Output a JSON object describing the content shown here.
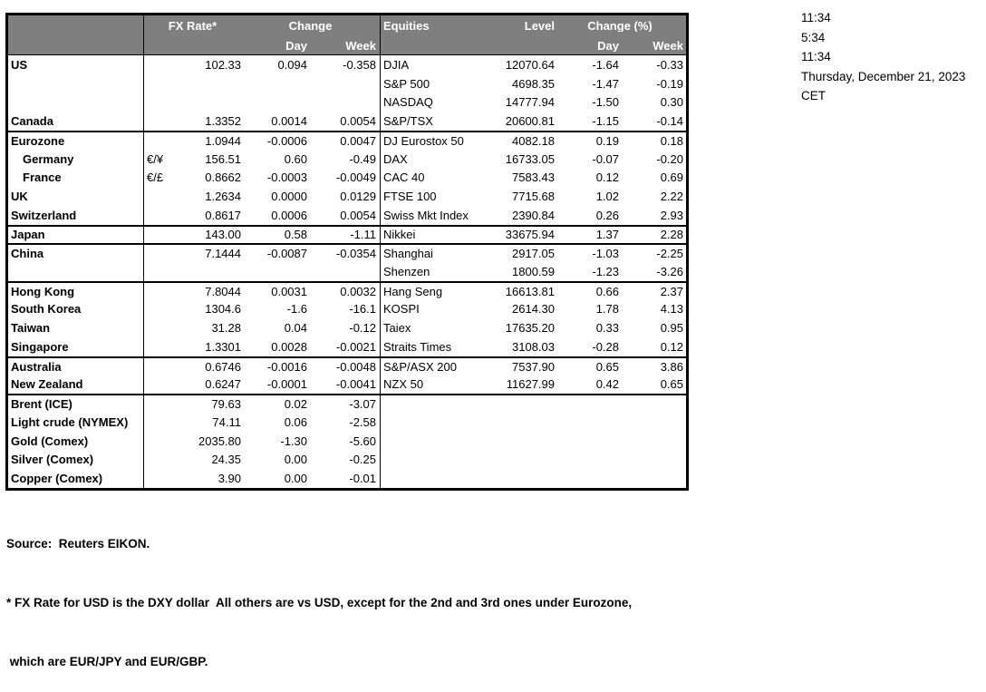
{
  "colors": {
    "header_bg": "#7f7f7f",
    "header_text": "#ffffff",
    "border": "#000000",
    "body_text": "#000000"
  },
  "header": {
    "fx": {
      "rate": "FX Rate*",
      "change": "Change",
      "day": "Day",
      "week": "Week"
    },
    "eq": {
      "title": "Equities",
      "level": "Level",
      "change": "Change (%)",
      "day": "Day",
      "week": "Week"
    }
  },
  "rows": [
    {
      "name": "US",
      "indent": false,
      "pair": "",
      "fx": "102.33",
      "fxDay": "0.094",
      "fxWeek": "-0.358",
      "eq": "DJIA",
      "level": "12070.64",
      "eqDay": "-1.64",
      "eqWeek": "-0.33",
      "section": false
    },
    {
      "name": "",
      "indent": false,
      "pair": "",
      "fx": "",
      "fxDay": "",
      "fxWeek": "",
      "eq": "S&P 500",
      "level": "4698.35",
      "eqDay": "-1.47",
      "eqWeek": "-0.19",
      "section": false
    },
    {
      "name": "",
      "indent": false,
      "pair": "",
      "fx": "",
      "fxDay": "",
      "fxWeek": "",
      "eq": "NASDAQ",
      "level": "14777.94",
      "eqDay": "-1.50",
      "eqWeek": "0.30",
      "section": false
    },
    {
      "name": "Canada",
      "indent": false,
      "pair": "",
      "fx": "1.3352",
      "fxDay": "0.0014",
      "fxWeek": "0.0054",
      "eq": "S&P/TSX",
      "level": "20600.81",
      "eqDay": "-1.15",
      "eqWeek": "-0.14",
      "section": false
    },
    {
      "name": "Eurozone",
      "indent": false,
      "pair": "",
      "fx": "1.0944",
      "fxDay": "-0.0006",
      "fxWeek": "0.0047",
      "eq": "DJ Eurostox 50",
      "level": "4082.18",
      "eqDay": "0.19",
      "eqWeek": "0.18",
      "section": true
    },
    {
      "name": "Germany",
      "indent": true,
      "pair": "€/¥",
      "fx": "156.51",
      "fxDay": "0.60",
      "fxWeek": "-0.49",
      "eq": "DAX",
      "level": "16733.05",
      "eqDay": "-0.07",
      "eqWeek": "-0.20",
      "section": false
    },
    {
      "name": "France",
      "indent": true,
      "pair": "€/£",
      "fx": "0.8662",
      "fxDay": "-0.0003",
      "fxWeek": "-0.0049",
      "eq": "CAC 40",
      "level": "7583.43",
      "eqDay": "0.12",
      "eqWeek": "0.69",
      "section": false
    },
    {
      "name": "UK",
      "indent": false,
      "pair": "",
      "fx": "1.2634",
      "fxDay": "0.0000",
      "fxWeek": "0.0129",
      "eq": "FTSE 100",
      "level": "7715.68",
      "eqDay": "1.02",
      "eqWeek": "2.22",
      "section": false
    },
    {
      "name": "Switzerland",
      "indent": false,
      "pair": "",
      "fx": "0.8617",
      "fxDay": "0.0006",
      "fxWeek": "0.0054",
      "eq": "Swiss Mkt Index",
      "level": "2390.84",
      "eqDay": "0.26",
      "eqWeek": "2.93",
      "section": false
    },
    {
      "name": "Japan",
      "indent": false,
      "pair": "",
      "fx": "143.00",
      "fxDay": "0.58",
      "fxWeek": "-1.11",
      "eq": "Nikkei",
      "level": "33675.94",
      "eqDay": "1.37",
      "eqWeek": "2.28",
      "section": true
    },
    {
      "name": "China",
      "indent": false,
      "pair": "",
      "fx": "7.1444",
      "fxDay": "-0.0087",
      "fxWeek": "-0.0354",
      "eq": "Shanghai",
      "level": "2917.05",
      "eqDay": "-1.03",
      "eqWeek": "-2.25",
      "section": true
    },
    {
      "name": "",
      "indent": false,
      "pair": "",
      "fx": "",
      "fxDay": "",
      "fxWeek": "",
      "eq": "Shenzen",
      "level": "1800.59",
      "eqDay": "-1.23",
      "eqWeek": "-3.26",
      "section": false
    },
    {
      "name": "Hong Kong",
      "indent": false,
      "pair": "",
      "fx": "7.8044",
      "fxDay": "0.0031",
      "fxWeek": "0.0032",
      "eq": "Hang Seng",
      "level": "16613.81",
      "eqDay": "0.66",
      "eqWeek": "2.37",
      "section": true
    },
    {
      "name": "South Korea",
      "indent": false,
      "pair": "",
      "fx": "1304.6",
      "fxDay": "-1.6",
      "fxWeek": "-16.1",
      "eq": "KOSPI",
      "level": "2614.30",
      "eqDay": "1.78",
      "eqWeek": "4.13",
      "section": false
    },
    {
      "name": "Taiwan",
      "indent": false,
      "pair": "",
      "fx": "31.28",
      "fxDay": "0.04",
      "fxWeek": "-0.12",
      "eq": "Taiex",
      "level": "17635.20",
      "eqDay": "0.33",
      "eqWeek": "0.95",
      "section": false
    },
    {
      "name": "Singapore",
      "indent": false,
      "pair": "",
      "fx": "1.3301",
      "fxDay": "0.0028",
      "fxWeek": "-0.0021",
      "eq": "Straits Times",
      "level": "3108.03",
      "eqDay": "-0.28",
      "eqWeek": "0.12",
      "section": false
    },
    {
      "name": "Australia",
      "indent": false,
      "pair": "",
      "fx": "0.6746",
      "fxDay": "-0.0016",
      "fxWeek": "-0.0048",
      "eq": "S&P/ASX  200",
      "level": "7537.90",
      "eqDay": "0.65",
      "eqWeek": "3.86",
      "section": true
    },
    {
      "name": "New Zealand",
      "indent": false,
      "pair": "",
      "fx": "0.6247",
      "fxDay": "-0.0001",
      "fxWeek": "-0.0041",
      "eq": "NZX 50",
      "level": "11627.99",
      "eqDay": "0.42",
      "eqWeek": "0.65",
      "section": false
    },
    {
      "name": "Brent (ICE)",
      "indent": false,
      "pair": "",
      "fx": "79.63",
      "fxDay": "0.02",
      "fxWeek": "-3.07",
      "eq": "",
      "level": "",
      "eqDay": "",
      "eqWeek": "",
      "section": true
    },
    {
      "name": "Light crude (NYMEX)",
      "indent": false,
      "pair": "",
      "fx": "74.11",
      "fxDay": "0.06",
      "fxWeek": "-2.58",
      "eq": "",
      "level": "",
      "eqDay": "",
      "eqWeek": "",
      "section": false
    },
    {
      "name": "Gold (Comex)",
      "indent": false,
      "pair": "",
      "fx": "2035.80",
      "fxDay": "-1.30",
      "fxWeek": "-5.60",
      "eq": "",
      "level": "",
      "eqDay": "",
      "eqWeek": "",
      "section": false
    },
    {
      "name": "Silver (Comex)",
      "indent": false,
      "pair": "",
      "fx": "24.35",
      "fxDay": "0.00",
      "fxWeek": "-0.25",
      "eq": "",
      "level": "",
      "eqDay": "",
      "eqWeek": "",
      "section": false
    },
    {
      "name": "Copper (Comex)",
      "indent": false,
      "pair": "",
      "fx": "3.90",
      "fxDay": "0.00",
      "fxWeek": "-0.01",
      "eq": "",
      "level": "",
      "eqDay": "",
      "eqWeek": "",
      "section": false
    }
  ],
  "timestamps": {
    "lines": [
      "11:34",
      "5:34",
      "11:34",
      "Thursday, December 21, 2023",
      "CET"
    ]
  },
  "footer": {
    "source": "Source:  Reuters EIKON.",
    "note1": "* FX Rate for USD is the DXY dollar  All others are vs USD, except for the 2nd and 3rd ones under Eurozone,",
    "note2": " which are EUR/JPY and EUR/GBP."
  }
}
